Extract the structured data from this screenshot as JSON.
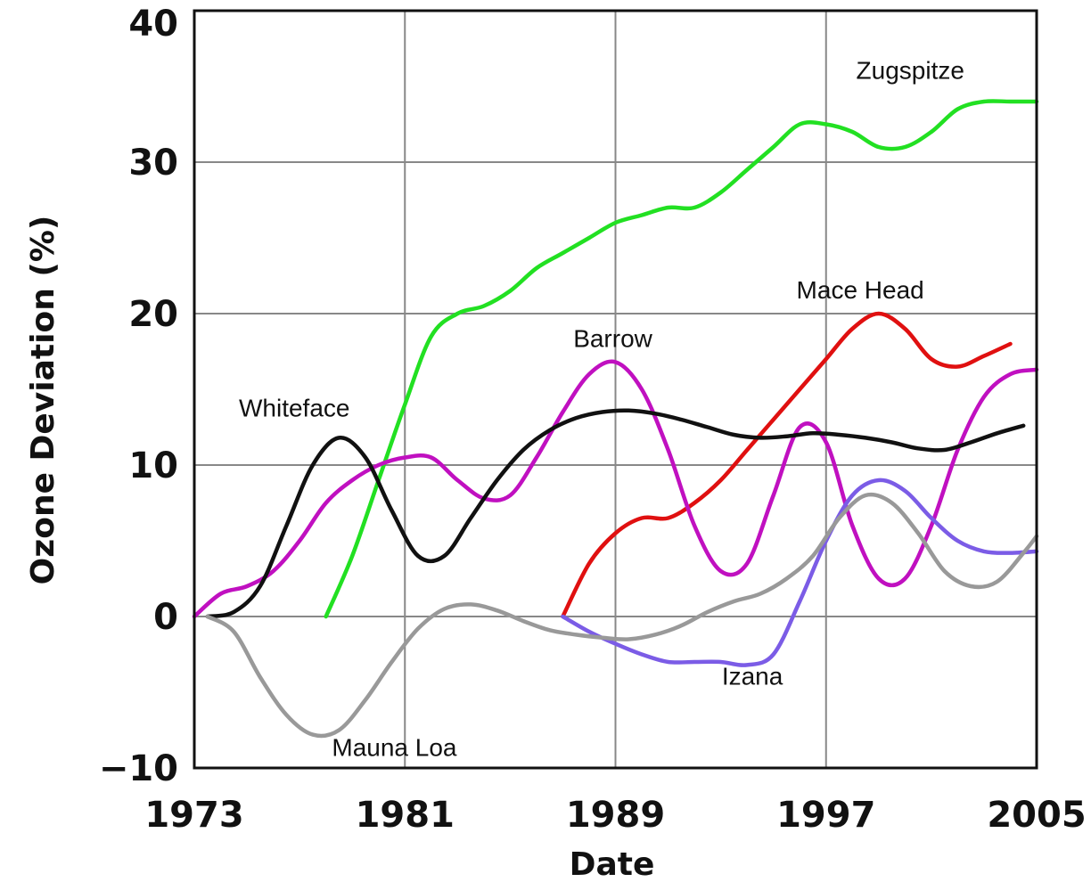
{
  "chart_data": {
    "type": "line",
    "title": "",
    "xlabel": "Date",
    "ylabel": "Ozone Deviation (%)",
    "xlim": [
      1973,
      2005
    ],
    "ylim": [
      -10,
      40
    ],
    "x_ticks": [
      1973,
      1981,
      1989,
      1997,
      2005
    ],
    "y_ticks": [
      -10,
      0,
      10,
      20,
      30,
      40
    ],
    "grid": true,
    "legend": "none",
    "series": [
      {
        "name": "Zugspitze",
        "color": "#22e022",
        "points": [
          [
            1978,
            0
          ],
          [
            1979,
            4
          ],
          [
            1980,
            9
          ],
          [
            1981,
            14
          ],
          [
            1982,
            18.5
          ],
          [
            1983,
            20
          ],
          [
            1984,
            20.5
          ],
          [
            1985,
            21.5
          ],
          [
            1986,
            23
          ],
          [
            1987,
            24
          ],
          [
            1988,
            25
          ],
          [
            1989,
            26
          ],
          [
            1990,
            26.5
          ],
          [
            1991,
            27
          ],
          [
            1992,
            27
          ],
          [
            1993,
            28
          ],
          [
            1994,
            29.5
          ],
          [
            1995,
            31
          ],
          [
            1996,
            32.5
          ],
          [
            1997,
            32.5
          ],
          [
            1998,
            32
          ],
          [
            1999,
            31
          ],
          [
            2000,
            31
          ],
          [
            2001,
            32
          ],
          [
            2002,
            33.5
          ],
          [
            2003,
            34
          ],
          [
            2004,
            34
          ],
          [
            2005,
            34
          ]
        ]
      },
      {
        "name": "Mace Head",
        "color": "#e01010",
        "points": [
          [
            1987,
            0
          ],
          [
            1988,
            3.5
          ],
          [
            1989,
            5.5
          ],
          [
            1990,
            6.5
          ],
          [
            1991,
            6.5
          ],
          [
            1992,
            7.5
          ],
          [
            1993,
            9
          ],
          [
            1994,
            11
          ],
          [
            1995,
            13
          ],
          [
            1996,
            15
          ],
          [
            1997,
            17
          ],
          [
            1998,
            19
          ],
          [
            1999,
            20
          ],
          [
            2000,
            19
          ],
          [
            2001,
            17
          ],
          [
            2002,
            16.5
          ],
          [
            2003,
            17.2
          ],
          [
            2004,
            18
          ]
        ]
      },
      {
        "name": "Barrow",
        "color": "#c010c0",
        "points": [
          [
            1973,
            0
          ],
          [
            1974,
            1.5
          ],
          [
            1975,
            2
          ],
          [
            1976,
            3
          ],
          [
            1977,
            5
          ],
          [
            1978,
            7.5
          ],
          [
            1979,
            9
          ],
          [
            1980,
            10
          ],
          [
            1981,
            10.5
          ],
          [
            1982,
            10.5
          ],
          [
            1983,
            9
          ],
          [
            1984,
            7.8
          ],
          [
            1985,
            8
          ],
          [
            1986,
            10.5
          ],
          [
            1987,
            13.5
          ],
          [
            1988,
            16
          ],
          [
            1989,
            16.8
          ],
          [
            1990,
            15
          ],
          [
            1991,
            11
          ],
          [
            1992,
            6
          ],
          [
            1993,
            3
          ],
          [
            1994,
            3.5
          ],
          [
            1995,
            8
          ],
          [
            1996,
            12.5
          ],
          [
            1997,
            11.5
          ],
          [
            1998,
            6
          ],
          [
            1999,
            2.5
          ],
          [
            2000,
            2.5
          ],
          [
            2001,
            6
          ],
          [
            2002,
            11
          ],
          [
            2003,
            14.5
          ],
          [
            2004,
            16
          ],
          [
            2005,
            16.3
          ]
        ]
      },
      {
        "name": "Whiteface",
        "color": "#111111",
        "points": [
          [
            1973.5,
            0
          ],
          [
            1974.5,
            0.3
          ],
          [
            1975.5,
            2
          ],
          [
            1976.5,
            6
          ],
          [
            1977.5,
            10
          ],
          [
            1978.5,
            11.8
          ],
          [
            1979.5,
            10.5
          ],
          [
            1980.5,
            7
          ],
          [
            1981.5,
            4
          ],
          [
            1982.5,
            4
          ],
          [
            1983.5,
            6.5
          ],
          [
            1984.5,
            9
          ],
          [
            1985.5,
            11
          ],
          [
            1986.5,
            12.3
          ],
          [
            1987.5,
            13.1
          ],
          [
            1988.5,
            13.5
          ],
          [
            1989.5,
            13.6
          ],
          [
            1990.5,
            13.4
          ],
          [
            1991.5,
            13
          ],
          [
            1992.5,
            12.5
          ],
          [
            1993.5,
            12
          ],
          [
            1994.5,
            11.8
          ],
          [
            1995.5,
            11.9
          ],
          [
            1996.5,
            12.1
          ],
          [
            1997.5,
            12
          ],
          [
            1998.5,
            11.8
          ],
          [
            1999.5,
            11.5
          ],
          [
            2000.5,
            11.1
          ],
          [
            2001.5,
            11
          ],
          [
            2002.5,
            11.5
          ],
          [
            2003.5,
            12.1
          ],
          [
            2004.5,
            12.6
          ]
        ]
      },
      {
        "name": "Izana",
        "color": "#7b5ce6",
        "points": [
          [
            1987,
            0
          ],
          [
            1988,
            -1
          ],
          [
            1989,
            -1.8
          ],
          [
            1990,
            -2.5
          ],
          [
            1991,
            -3
          ],
          [
            1992,
            -3
          ],
          [
            1993,
            -3
          ],
          [
            1994,
            -3.2
          ],
          [
            1995,
            -2.5
          ],
          [
            1996,
            1
          ],
          [
            1997,
            5
          ],
          [
            1998,
            8
          ],
          [
            1999,
            9
          ],
          [
            2000,
            8.3
          ],
          [
            2001,
            6.5
          ],
          [
            2002,
            5
          ],
          [
            2003,
            4.3
          ],
          [
            2004,
            4.2
          ],
          [
            2005,
            4.3
          ]
        ]
      },
      {
        "name": "Mauna Loa",
        "color": "#999999",
        "points": [
          [
            1973.5,
            0
          ],
          [
            1974.5,
            -1
          ],
          [
            1975.5,
            -4
          ],
          [
            1976.5,
            -6.5
          ],
          [
            1977.5,
            -7.8
          ],
          [
            1978.5,
            -7.5
          ],
          [
            1979.5,
            -5.5
          ],
          [
            1980.5,
            -3
          ],
          [
            1981.5,
            -0.8
          ],
          [
            1982.5,
            0.5
          ],
          [
            1983.5,
            0.8
          ],
          [
            1984.5,
            0.4
          ],
          [
            1985.5,
            -0.3
          ],
          [
            1986.5,
            -0.9
          ],
          [
            1987.5,
            -1.2
          ],
          [
            1988.5,
            -1.4
          ],
          [
            1989.5,
            -1.5
          ],
          [
            1990.5,
            -1.2
          ],
          [
            1991.5,
            -0.6
          ],
          [
            1992.5,
            0.3
          ],
          [
            1993.5,
            1
          ],
          [
            1994.5,
            1.5
          ],
          [
            1995.5,
            2.5
          ],
          [
            1996.5,
            4
          ],
          [
            1997.5,
            6.5
          ],
          [
            1998.5,
            8
          ],
          [
            1999.5,
            7.5
          ],
          [
            2000.5,
            5.5
          ],
          [
            2001.5,
            3
          ],
          [
            2002.5,
            2
          ],
          [
            2003.5,
            2.3
          ],
          [
            2004.5,
            4.2
          ],
          [
            2005,
            5.3
          ]
        ]
      }
    ],
    "annotations": [
      "Zugspitze",
      "Mace Head",
      "Barrow",
      "Whiteface",
      "Izana",
      "Mauna Loa"
    ]
  }
}
